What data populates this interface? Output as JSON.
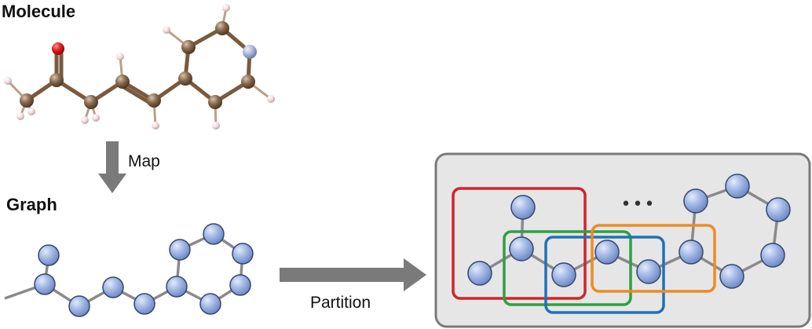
{
  "molecule": {
    "heading": "Molecule"
  },
  "graph": {
    "heading": "Graph"
  },
  "arrows": {
    "map_label": "Map",
    "partition_label": "Partition"
  },
  "panel": {
    "ellipsis": "•••"
  },
  "colors": {
    "carbon": "#8a6a4e",
    "oxygen": "#e11d1d",
    "nitrogen": "#a8b6d6",
    "hydrogen": "#f1dede",
    "bond": "#8a6a4e",
    "node": "#a7bce8",
    "edge": "#8a8a8a",
    "arrow": "#7a7a7a",
    "panel_bg": "#e6e6e6",
    "partition_red": "#d0242b",
    "partition_green": "#2ea043",
    "partition_blue": "#2170b8",
    "partition_orange": "#f08a24"
  }
}
